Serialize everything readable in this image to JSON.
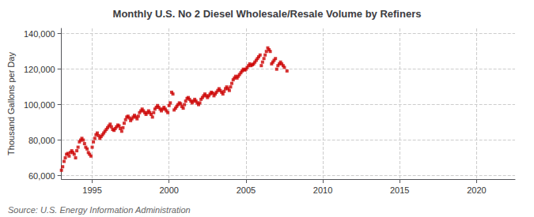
{
  "chart_data": {
    "type": "scatter",
    "title": "Monthly U.S. No 2 Diesel Wholesale/Resale Volume by Refiners",
    "ylabel": "Thousand Gallons per Day",
    "annotations": [
      "Source: U.S. Energy Information Administration"
    ],
    "color": "#cc0000",
    "marker": "square",
    "grid": true,
    "xlim": [
      1993.0,
      2022.5
    ],
    "ylim": [
      58000,
      143000
    ],
    "xticks": [
      1995,
      2000,
      2005,
      2010,
      2015,
      2020
    ],
    "yticks": [
      {
        "value": 60000,
        "label": "60,000"
      },
      {
        "value": 80000,
        "label": "80,000"
      },
      {
        "value": 100000,
        "label": "100,000"
      },
      {
        "value": 120000,
        "label": "120,000"
      },
      {
        "value": 140000,
        "label": "140,000"
      }
    ],
    "x": [
      1993.0,
      1993.08,
      1993.17,
      1993.25,
      1993.33,
      1993.42,
      1993.5,
      1993.58,
      1993.67,
      1993.75,
      1993.83,
      1993.92,
      1994.0,
      1994.08,
      1994.17,
      1994.25,
      1994.33,
      1994.42,
      1994.5,
      1994.58,
      1994.67,
      1994.75,
      1994.83,
      1994.92,
      1995.0,
      1995.08,
      1995.17,
      1995.25,
      1995.33,
      1995.42,
      1995.5,
      1995.58,
      1995.67,
      1995.75,
      1995.83,
      1995.92,
      1996.0,
      1996.08,
      1996.17,
      1996.25,
      1996.33,
      1996.42,
      1996.5,
      1996.58,
      1996.67,
      1996.75,
      1996.83,
      1996.92,
      1997.0,
      1997.08,
      1997.17,
      1997.25,
      1997.33,
      1997.42,
      1997.5,
      1997.58,
      1997.67,
      1997.75,
      1997.83,
      1997.92,
      1998.0,
      1998.08,
      1998.17,
      1998.25,
      1998.33,
      1998.42,
      1998.5,
      1998.58,
      1998.67,
      1998.75,
      1998.83,
      1998.92,
      1999.0,
      1999.08,
      1999.17,
      1999.25,
      1999.33,
      1999.42,
      1999.5,
      1999.58,
      1999.67,
      1999.75,
      1999.83,
      1999.92,
      2000.0,
      2000.08,
      2000.17,
      2000.25,
      2000.33,
      2000.42,
      2000.5,
      2000.58,
      2000.67,
      2000.75,
      2000.83,
      2000.92,
      2001.0,
      2001.08,
      2001.17,
      2001.25,
      2001.33,
      2001.42,
      2001.5,
      2001.58,
      2001.67,
      2001.75,
      2001.83,
      2001.92,
      2002.0,
      2002.08,
      2002.17,
      2002.25,
      2002.33,
      2002.42,
      2002.5,
      2002.58,
      2002.67,
      2002.75,
      2002.83,
      2002.92,
      2003.0,
      2003.08,
      2003.17,
      2003.25,
      2003.33,
      2003.42,
      2003.5,
      2003.58,
      2003.67,
      2003.75,
      2003.83,
      2003.92,
      2004.0,
      2004.08,
      2004.17,
      2004.25,
      2004.33,
      2004.42,
      2004.5,
      2004.58,
      2004.67,
      2004.75,
      2004.83,
      2004.92,
      2005.0,
      2005.08,
      2005.17,
      2005.25,
      2005.33,
      2005.42,
      2005.5,
      2005.58,
      2005.67,
      2005.75,
      2005.83,
      2005.92,
      2006.0,
      2006.08,
      2006.17,
      2006.25,
      2006.33,
      2006.42,
      2006.5,
      2006.58,
      2006.67,
      2006.75,
      2006.83,
      2006.92,
      2007.0,
      2007.08,
      2007.17,
      2007.25,
      2007.33,
      2007.42,
      2007.5,
      2007.67
    ],
    "values": [
      63000,
      65000,
      68000,
      70000,
      72000,
      72500,
      71000,
      73000,
      74000,
      73000,
      72000,
      70000,
      74000,
      76000,
      79000,
      80000,
      81000,
      80000,
      78000,
      76000,
      75000,
      73000,
      72000,
      71000,
      76000,
      79000,
      81000,
      83000,
      84000,
      82500,
      81000,
      82000,
      83000,
      84000,
      85000,
      86000,
      87000,
      88000,
      89000,
      87500,
      86000,
      85500,
      86500,
      87500,
      88500,
      88000,
      86500,
      85000,
      87000,
      89500,
      91500,
      93000,
      93500,
      92500,
      91000,
      92000,
      93000,
      94000,
      93000,
      92000,
      93500,
      95500,
      96500,
      97500,
      96500,
      95500,
      94500,
      95500,
      96500,
      95500,
      94500,
      93000,
      95500,
      97500,
      98500,
      99500,
      98500,
      97500,
      96500,
      97500,
      98500,
      97500,
      96500,
      95500,
      99500,
      101000,
      107000,
      106000,
      97000,
      98000,
      99000,
      100000,
      101000,
      100500,
      99000,
      98000,
      100000,
      102000,
      103500,
      104000,
      103000,
      102000,
      101000,
      102000,
      103000,
      102000,
      101000,
      100000,
      101000,
      103000,
      104000,
      105000,
      106000,
      105000,
      104000,
      105000,
      106000,
      107000,
      106500,
      105000,
      106000,
      107000,
      108000,
      109000,
      108000,
      107000,
      106000,
      107500,
      109000,
      110000,
      109000,
      108000,
      110000,
      112000,
      114000,
      115000,
      116000,
      115000,
      116000,
      117000,
      118000,
      119000,
      120000,
      119500,
      120000,
      121000,
      122000,
      123000,
      122000,
      122500,
      123000,
      124000,
      125000,
      126000,
      127000,
      128000,
      122000,
      124000,
      126000,
      128000,
      130000,
      132000,
      131000,
      130000,
      123000,
      124000,
      125000,
      126000,
      120000,
      122000,
      123000,
      124000,
      123000,
      122000,
      121000,
      119000
    ]
  }
}
